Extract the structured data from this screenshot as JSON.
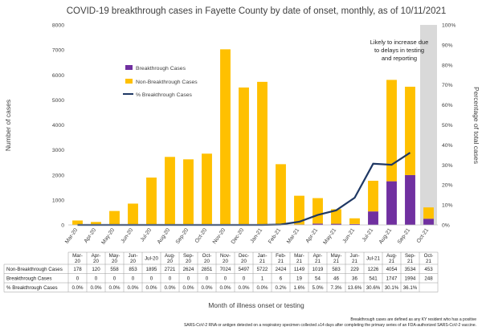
{
  "chart_data": {
    "type": "bar",
    "title": "COVID-19 breakthrough cases in Fayette County by date of onset, monthly, as of 10/11/2021",
    "xlabel": "Month of illness onset or testing",
    "ylabel": "Number of cases",
    "y2label": "Percentage of total cases",
    "ylim": [
      0,
      8000
    ],
    "y2lim": [
      0,
      100
    ],
    "yticks": [
      "0",
      "1000",
      "2000",
      "3000",
      "4000",
      "5000",
      "6000",
      "7000",
      "8000"
    ],
    "y2ticks": [
      "0%",
      "10%",
      "20%",
      "30%",
      "40%",
      "50%",
      "60%",
      "70%",
      "80%",
      "90%",
      "100%"
    ],
    "categories": [
      "Mar-20",
      "Apr-20",
      "May-20",
      "Jun-20",
      "Jul-20",
      "Aug-20",
      "Sep-20",
      "Oct-20",
      "Nov-20",
      "Dec-20",
      "Jan-21",
      "Feb-21",
      "Mar-21",
      "Apr-21",
      "May-21",
      "Jun-21",
      "Jul-21",
      "Aug-21",
      "Sep-21",
      "Oct-21"
    ],
    "table_categories": [
      "Mar-\n20",
      "Apr-\n20",
      "May-\n20",
      "Jun-\n20",
      "Jul-20",
      "Aug-\n20",
      "Sep-\n20",
      "Oct-\n20",
      "Nov-\n20",
      "Dec-\n20",
      "Jan-\n21",
      "Feb-\n21",
      "Mar-\n21",
      "Apr-\n21",
      "May-\n21",
      "Jun-\n21",
      "Jul-21",
      "Aug-\n21",
      "Sep-\n21",
      "Oct-\n21"
    ],
    "series": [
      {
        "name": "Breakthrough Cases",
        "color": "#7030a0",
        "values": [
          0,
          0,
          0,
          0,
          0,
          0,
          0,
          0,
          0,
          0,
          1,
          6,
          19,
          54,
          46,
          36,
          541,
          1747,
          1994,
          248
        ]
      },
      {
        "name": "Non-Breakthrough Cases",
        "color": "#ffc000",
        "values": [
          178,
          120,
          558,
          853,
          1895,
          2721,
          2624,
          2851,
          7024,
          5497,
          5722,
          2424,
          1149,
          1019,
          583,
          229,
          1226,
          4054,
          3534,
          453
        ]
      },
      {
        "name": "% Breakthrough Cases",
        "color": "#1f3864",
        "axis": "right",
        "values": [
          0.0,
          0.0,
          0.0,
          0.0,
          0.0,
          0.0,
          0.0,
          0.0,
          0.0,
          0.0,
          0.0,
          0.2,
          1.6,
          5.0,
          7.3,
          13.6,
          30.6,
          30.1,
          36.1,
          null
        ]
      }
    ],
    "table_rows": [
      {
        "label": "Non-Breakthrough Cases",
        "cells": [
          "178",
          "120",
          "558",
          "853",
          "1895",
          "2721",
          "2624",
          "2851",
          "7024",
          "5497",
          "5722",
          "2424",
          "1149",
          "1019",
          "583",
          "229",
          "1226",
          "4054",
          "3534",
          "453"
        ]
      },
      {
        "label": "Breakthrough Cases",
        "cells": [
          "0",
          "0",
          "0",
          "0",
          "0",
          "0",
          "0",
          "0",
          "0",
          "0",
          "1",
          "6",
          "19",
          "54",
          "46",
          "36",
          "541",
          "1747",
          "1994",
          "248"
        ]
      },
      {
        "label": "% Breakthrough Cases",
        "cells": [
          "0.0%",
          "0.0%",
          "0.0%",
          "0.0%",
          "0.0%",
          "0.0%",
          "0.0%",
          "0.0%",
          "0.0%",
          "0.0%",
          "0.0%",
          "0.2%",
          "1.6%",
          "5.0%",
          "7.3%",
          "13.6%",
          "30.6%",
          "30.1%",
          "36.1%",
          ""
        ]
      }
    ],
    "annotation": "Likely to increase due to delays in testing and reporting",
    "highlight_category": "Oct-21",
    "highlight_color": "#d9d9d9",
    "legend_position": "upper-left",
    "grid": false,
    "footnote": "Breakthrough cases are defined as any KY resident who has a positive SARS-CoV-2 RNA or antigen detected on a respiratory specimen collected ≥14 days after completing the primary series of an FDA-authorized SARS-CoV-2 vaccine."
  }
}
